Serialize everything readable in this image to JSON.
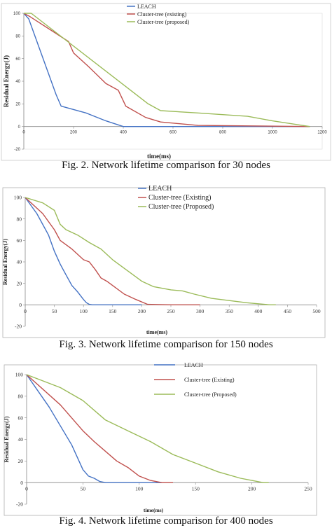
{
  "chart_data": [
    {
      "type": "line",
      "caption": "Fig. 2. Network lifetime comparison for 30 nodes",
      "xlabel": "time(ms)",
      "ylabel": "Residual Energy(J)",
      "xlim": [
        0,
        1200
      ],
      "ylim": [
        -20,
        100
      ],
      "xticks": [
        "0",
        "200",
        "400",
        "600",
        "800",
        "1000",
        "1200"
      ],
      "yticks": [
        "-20",
        "0",
        "20",
        "40",
        "60",
        "80",
        "100"
      ],
      "grid": false,
      "legend_position": "top-center",
      "series": [
        {
          "name": "LEACH",
          "color": "#4472C4",
          "x": [
            0,
            20,
            130,
            150,
            250,
            330,
            400,
            1150
          ],
          "y": [
            100,
            95,
            28,
            18,
            12,
            5,
            0,
            0
          ]
        },
        {
          "name": "Cluster-tree (existing)",
          "color": "#C0504D",
          "x": [
            0,
            25,
            180,
            200,
            260,
            330,
            380,
            410,
            490,
            550,
            700,
            1150
          ],
          "y": [
            100,
            97,
            75,
            65,
            53,
            38,
            32,
            18,
            8,
            4,
            1,
            0
          ]
        },
        {
          "name": "Cluster-tree (proposed)",
          "color": "#9BBB59",
          "x": [
            0,
            30,
            500,
            550,
            700,
            900,
            1000,
            1150
          ],
          "y": [
            100,
            100,
            20,
            14,
            12,
            9,
            5,
            0
          ]
        }
      ]
    },
    {
      "type": "line",
      "caption": "Fig. 3. Network lifetime comparison for 150 nodes",
      "xlabel": "time(ms)",
      "ylabel": "Residual Energy(J)",
      "xlim": [
        0,
        500
      ],
      "ylim": [
        -20,
        100
      ],
      "xticks": [
        "0",
        "50",
        "100",
        "150",
        "200",
        "250",
        "300",
        "350",
        "400",
        "450",
        "500"
      ],
      "yticks": [
        "-20",
        "0",
        "20",
        "40",
        "60",
        "80",
        "100"
      ],
      "grid": false,
      "legend_position": "top-center",
      "series": [
        {
          "name": "LEACH",
          "color": "#4472C4",
          "x": [
            0,
            20,
            40,
            50,
            60,
            70,
            80,
            90,
            100,
            105,
            110,
            115,
            120,
            150,
            200
          ],
          "y": [
            100,
            85,
            65,
            50,
            38,
            28,
            18,
            12,
            5,
            2,
            0.5,
            0,
            0,
            0,
            0
          ]
        },
        {
          "name": "Cluster-tree (Existing)",
          "color": "#C0504D",
          "x": [
            0,
            30,
            50,
            60,
            80,
            100,
            110,
            120,
            130,
            140,
            150,
            170,
            190,
            210,
            250,
            300
          ],
          "y": [
            100,
            85,
            70,
            60,
            52,
            42,
            40,
            33,
            25,
            22,
            18,
            10,
            5,
            0.5,
            0,
            0
          ]
        },
        {
          "name": "Cluster-tree (Proposed)",
          "color": "#9BBB59",
          "x": [
            0,
            30,
            50,
            60,
            70,
            90,
            110,
            130,
            150,
            160,
            180,
            200,
            220,
            250,
            270,
            290,
            320,
            350,
            380,
            400,
            420,
            430
          ],
          "y": [
            100,
            95,
            88,
            75,
            70,
            65,
            58,
            52,
            42,
            38,
            30,
            22,
            17,
            14,
            13,
            10,
            6,
            4,
            2,
            1,
            0,
            0
          ]
        }
      ]
    },
    {
      "type": "line",
      "caption": "Fig. 4. Network lifetime comparison for 400 nodes",
      "xlabel": "time(ms)",
      "ylabel": "Residual Energy(J)",
      "xlim": [
        0,
        250
      ],
      "ylim": [
        -20,
        100
      ],
      "xticks": [
        "0",
        "50",
        "100",
        "150",
        "200",
        "250"
      ],
      "yticks": [
        "-20",
        "0",
        "20",
        "40",
        "60",
        "80",
        "100"
      ],
      "grid": false,
      "legend_position": "right",
      "series": [
        {
          "name": "LEACH",
          "color": "#4472C4",
          "x": [
            0,
            20,
            40,
            50,
            55,
            60,
            65,
            70,
            80,
            100,
            120
          ],
          "y": [
            100,
            70,
            35,
            12,
            6,
            4,
            1,
            0,
            0,
            0,
            0
          ]
        },
        {
          "name": "Cluster-tree (Existing)",
          "color": "#C0504D",
          "x": [
            0,
            30,
            50,
            60,
            80,
            90,
            100,
            110,
            120,
            130
          ],
          "y": [
            100,
            72,
            48,
            38,
            20,
            14,
            6,
            2,
            0,
            0
          ]
        },
        {
          "name": "Cluster-tree (Proposed)",
          "color": "#9BBB59",
          "x": [
            0,
            30,
            50,
            70,
            90,
            110,
            130,
            150,
            170,
            190,
            200,
            210,
            215
          ],
          "y": [
            100,
            88,
            76,
            58,
            48,
            38,
            26,
            18,
            10,
            4,
            2,
            0,
            0
          ]
        }
      ]
    }
  ]
}
